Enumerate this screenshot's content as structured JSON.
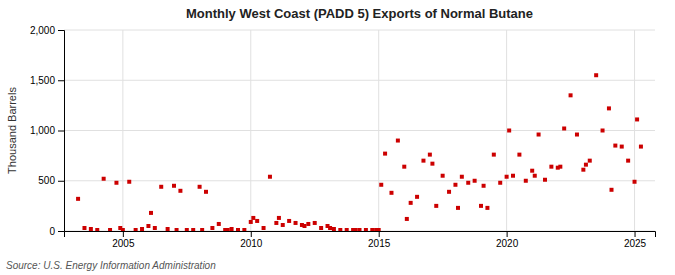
{
  "chart_data": {
    "type": "scatter",
    "title": "Monthly West Coast (PADD 5) Exports of Normal Butane",
    "y_label": "Thousand Barrels",
    "annotations": [
      "Source: U.S. Energy Information Administration"
    ],
    "color": "#cc0000",
    "marker": "square",
    "grid": true,
    "xlim": [
      2002.7,
      2025.8
    ],
    "xticks": [
      2005,
      2010,
      2015,
      2020,
      2025
    ],
    "ylim": [
      0,
      2000
    ],
    "yticks": [
      0,
      500,
      {
        "value": 1000,
        "label": "1,000"
      },
      {
        "value": 1500,
        "label": "1,500"
      },
      {
        "value": 2000,
        "label": "2,000"
      }
    ],
    "x": [
      2003.25,
      2003.5,
      2003.75,
      2004.0,
      2004.25,
      2004.5,
      2004.75,
      2004.9,
      2005.0,
      2005.25,
      2005.5,
      2005.75,
      2006.0,
      2006.1,
      2006.25,
      2006.5,
      2006.75,
      2007.0,
      2007.1,
      2007.25,
      2007.5,
      2007.75,
      2008.0,
      2008.1,
      2008.25,
      2008.5,
      2008.75,
      2009.0,
      2009.1,
      2009.25,
      2009.5,
      2009.75,
      2010.0,
      2010.1,
      2010.25,
      2010.5,
      2010.75,
      2011.0,
      2011.1,
      2011.25,
      2011.5,
      2011.75,
      2012.0,
      2012.1,
      2012.25,
      2012.5,
      2012.75,
      2013.0,
      2013.1,
      2013.25,
      2013.5,
      2013.75,
      2014.0,
      2014.1,
      2014.25,
      2014.5,
      2014.75,
      2014.9,
      2015.0,
      2015.1,
      2015.25,
      2015.5,
      2015.75,
      2016.0,
      2016.1,
      2016.25,
      2016.5,
      2016.75,
      2017.0,
      2017.1,
      2017.25,
      2017.5,
      2017.75,
      2018.0,
      2018.1,
      2018.25,
      2018.5,
      2018.75,
      2019.0,
      2019.1,
      2019.25,
      2019.5,
      2019.75,
      2020.0,
      2020.1,
      2020.25,
      2020.5,
      2020.75,
      2021.0,
      2021.1,
      2021.25,
      2021.5,
      2021.75,
      2022.0,
      2022.1,
      2022.25,
      2022.5,
      2022.75,
      2023.0,
      2023.1,
      2023.25,
      2023.5,
      2023.75,
      2024.0,
      2024.1,
      2024.25,
      2024.5,
      2024.75,
      2025.0,
      2025.1,
      2025.25
    ],
    "values": [
      320,
      30,
      20,
      10,
      520,
      10,
      480,
      30,
      10,
      490,
      10,
      20,
      50,
      180,
      30,
      440,
      20,
      450,
      10,
      400,
      10,
      10,
      440,
      10,
      390,
      30,
      70,
      10,
      10,
      20,
      10,
      10,
      90,
      130,
      100,
      30,
      540,
      80,
      130,
      60,
      100,
      80,
      60,
      50,
      70,
      80,
      30,
      50,
      30,
      20,
      10,
      10,
      10,
      10,
      10,
      10,
      10,
      10,
      10,
      460,
      770,
      380,
      900,
      640,
      120,
      280,
      340,
      700,
      760,
      670,
      250,
      550,
      390,
      460,
      230,
      540,
      480,
      500,
      250,
      450,
      230,
      760,
      480,
      540,
      1000,
      550,
      760,
      500,
      600,
      550,
      960,
      510,
      640,
      630,
      640,
      1020,
      1350,
      960,
      610,
      660,
      700,
      1550,
      1000,
      1220,
      410,
      850,
      840,
      700,
      490,
      1110,
      840
    ]
  }
}
